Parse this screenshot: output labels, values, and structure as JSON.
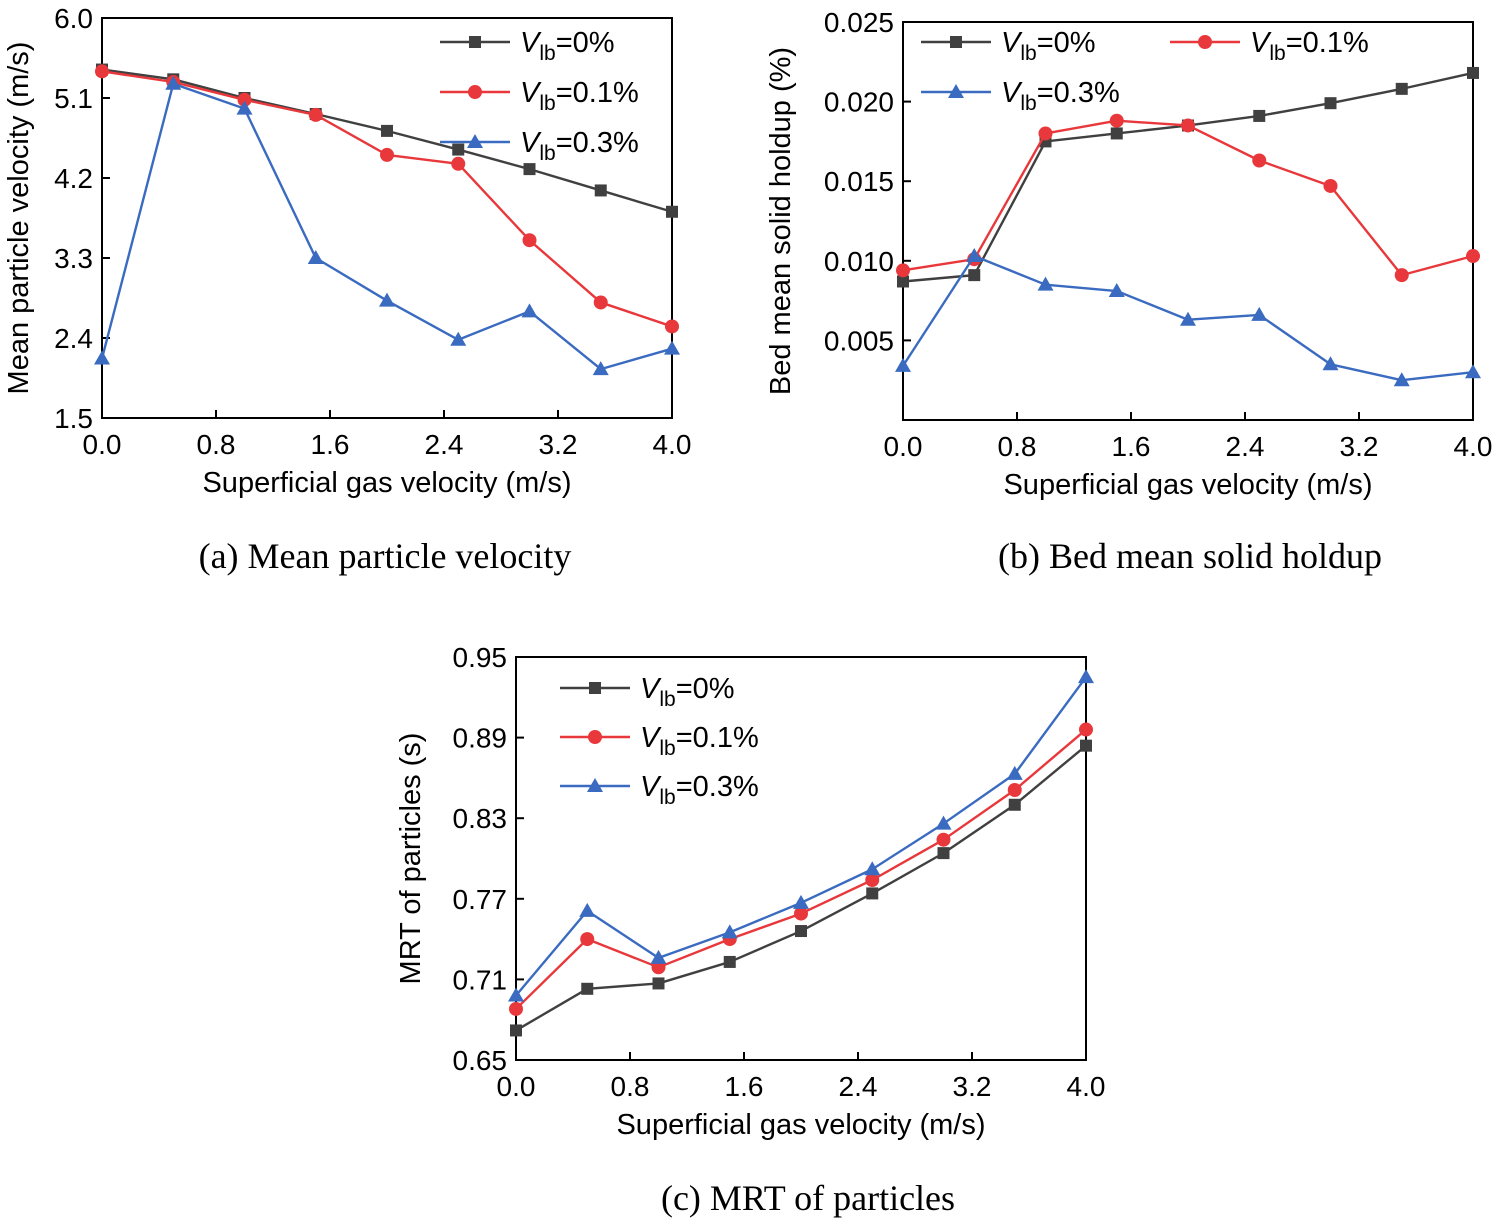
{
  "chart_data": [
    {
      "type": "line",
      "panel": "a",
      "caption": "(a) Mean particle velocity",
      "xlabel": "Superficial gas velocity (m/s)",
      "ylabel": "Mean particle velocity (m/s)",
      "xlim": [
        0,
        4
      ],
      "ylim": [
        1.5,
        6.0
      ],
      "xticks": [
        "0.0",
        "0.8",
        "1.6",
        "2.4",
        "3.2",
        "4.0"
      ],
      "yticks": [
        "1.5",
        "2.4",
        "3.3",
        "4.2",
        "5.1",
        "6.0"
      ],
      "legend_position": "top-right",
      "x": [
        0,
        0.5,
        1.0,
        1.5,
        2.0,
        2.5,
        3.0,
        3.5,
        4.0
      ],
      "series": [
        {
          "name": "0%",
          "color": "#404040",
          "marker": "square",
          "values": [
            5.42,
            5.31,
            5.1,
            4.92,
            4.73,
            4.52,
            4.3,
            4.06,
            3.82
          ]
        },
        {
          "name": "0.1%",
          "color": "#e8383b",
          "marker": "circle",
          "values": [
            5.4,
            5.28,
            5.08,
            4.91,
            4.46,
            4.36,
            3.5,
            2.8,
            2.53
          ]
        },
        {
          "name": "0.3%",
          "color": "#3a6bc0",
          "marker": "triangle",
          "values": [
            2.17,
            5.26,
            4.98,
            3.3,
            2.82,
            2.38,
            2.7,
            2.05,
            2.28
          ]
        }
      ]
    },
    {
      "type": "line",
      "panel": "b",
      "caption": "(b) Bed mean solid holdup",
      "xlabel": "Superficial gas velocity (m/s)",
      "ylabel": "Bed mean solid holdup (%)",
      "xlim": [
        0,
        4
      ],
      "ylim": [
        0.0,
        0.025
      ],
      "xticks": [
        "0.0",
        "0.8",
        "1.6",
        "2.4",
        "3.2",
        "4.0"
      ],
      "yticks": [
        "0.005",
        "0.010",
        "0.015",
        "0.020",
        "0.025"
      ],
      "legend_position": "top",
      "x": [
        0,
        0.5,
        1.0,
        1.5,
        2.0,
        2.5,
        3.0,
        3.5,
        4.0
      ],
      "series": [
        {
          "name": "0%",
          "color": "#404040",
          "marker": "square",
          "values": [
            0.0087,
            0.0091,
            0.0175,
            0.018,
            0.0185,
            0.0191,
            0.0199,
            0.0208,
            0.0218
          ]
        },
        {
          "name": "0.1%",
          "color": "#e8383b",
          "marker": "circle",
          "values": [
            0.0094,
            0.0101,
            0.018,
            0.0188,
            0.0185,
            0.0163,
            0.0147,
            0.0091,
            0.0103
          ]
        },
        {
          "name": "0.3%",
          "color": "#3a6bc0",
          "marker": "triangle",
          "values": [
            0.0034,
            0.0103,
            0.0085,
            0.0081,
            0.0063,
            0.0066,
            0.0035,
            0.0025,
            0.003
          ]
        }
      ]
    },
    {
      "type": "line",
      "panel": "c",
      "caption": "(c) MRT of particles",
      "xlabel": "Superficial gas velocity (m/s)",
      "ylabel": "MRT of particles (s)",
      "xlim": [
        0,
        4
      ],
      "ylim": [
        0.65,
        0.95
      ],
      "xticks": [
        "0.0",
        "0.8",
        "1.6",
        "2.4",
        "3.2",
        "4.0"
      ],
      "yticks": [
        "0.65",
        "0.71",
        "0.77",
        "0.83",
        "0.89",
        "0.95"
      ],
      "legend_position": "top-left",
      "x": [
        0,
        0.5,
        1.0,
        1.5,
        2.0,
        2.5,
        3.0,
        3.5,
        4.0
      ],
      "series": [
        {
          "name": "0%",
          "color": "#404040",
          "marker": "square",
          "values": [
            0.672,
            0.703,
            0.707,
            0.723,
            0.746,
            0.774,
            0.804,
            0.84,
            0.884
          ]
        },
        {
          "name": "0.1%",
          "color": "#e8383b",
          "marker": "circle",
          "values": [
            0.688,
            0.74,
            0.719,
            0.74,
            0.759,
            0.784,
            0.814,
            0.851,
            0.896
          ]
        },
        {
          "name": "0.3%",
          "color": "#3a6bc0",
          "marker": "triangle",
          "values": [
            0.698,
            0.761,
            0.726,
            0.745,
            0.767,
            0.792,
            0.826,
            0.863,
            0.935
          ]
        }
      ]
    }
  ],
  "legend_symbol": "V",
  "legend_subscript": "lb",
  "legend_prefix": "="
}
